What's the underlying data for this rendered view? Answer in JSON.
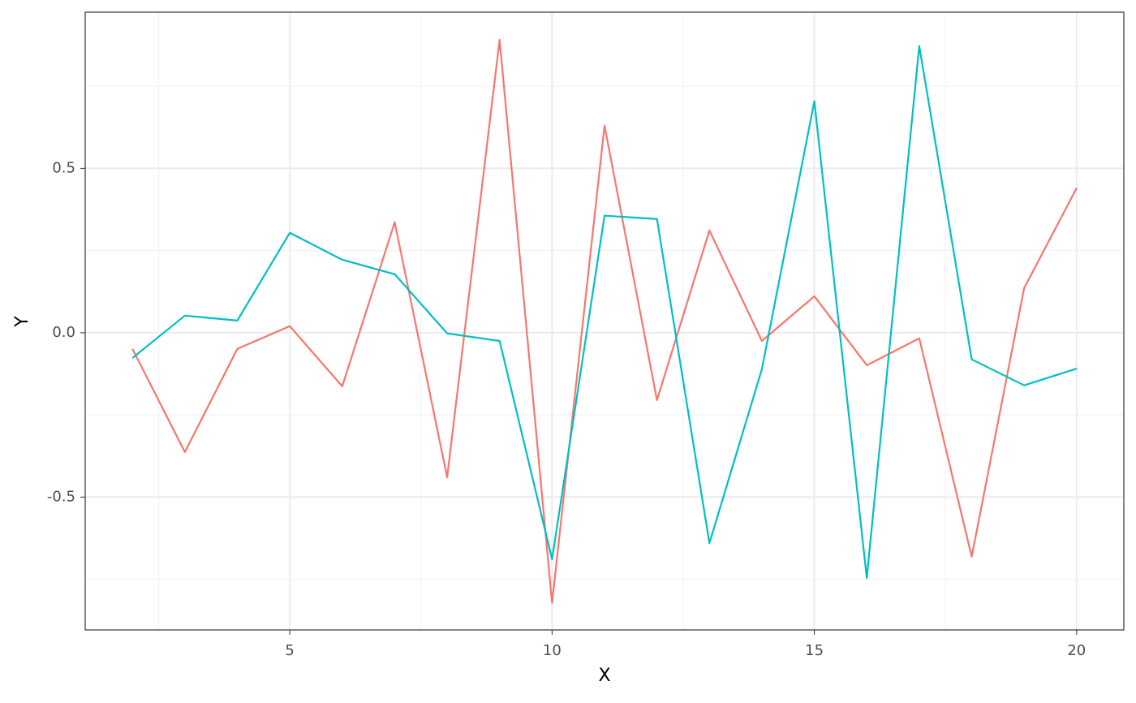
{
  "chart_data": {
    "type": "line",
    "x": [
      2,
      3,
      4,
      5,
      6,
      7,
      8,
      9,
      10,
      11,
      12,
      13,
      14,
      15,
      16,
      17,
      18,
      19,
      20
    ],
    "series": [
      {
        "color": "#f8766d",
        "values": [
          -0.049,
          -0.363,
          -0.049,
          0.02,
          -0.163,
          0.336,
          -0.44,
          0.891,
          -0.822,
          0.63,
          -0.205,
          0.311,
          -0.025,
          0.111,
          -0.099,
          -0.017,
          -0.681,
          0.136,
          0.44
        ]
      },
      {
        "color": "#00bfc4",
        "values": [
          -0.077,
          0.052,
          0.037,
          0.304,
          0.222,
          0.178,
          -0.002,
          -0.025,
          -0.689,
          0.356,
          0.346,
          -0.64,
          -0.111,
          0.704,
          -0.746,
          0.872,
          -0.081,
          -0.16,
          -0.109
        ]
      }
    ],
    "x_label": "X",
    "y_label": "Y",
    "xlim": [
      1.1,
      20.9
    ],
    "ylim": [
      -0.904,
      0.975
    ],
    "xticks": [
      5,
      10,
      15,
      20
    ],
    "yticks": [
      -0.5,
      {
        "value": 0,
        "label": "0.0"
      },
      0.5
    ],
    "xminor": [
      2.5,
      7.5,
      12.5,
      17.5
    ],
    "yminor": [
      -0.75,
      -0.25,
      0.25,
      0.75
    ],
    "grid": true
  }
}
